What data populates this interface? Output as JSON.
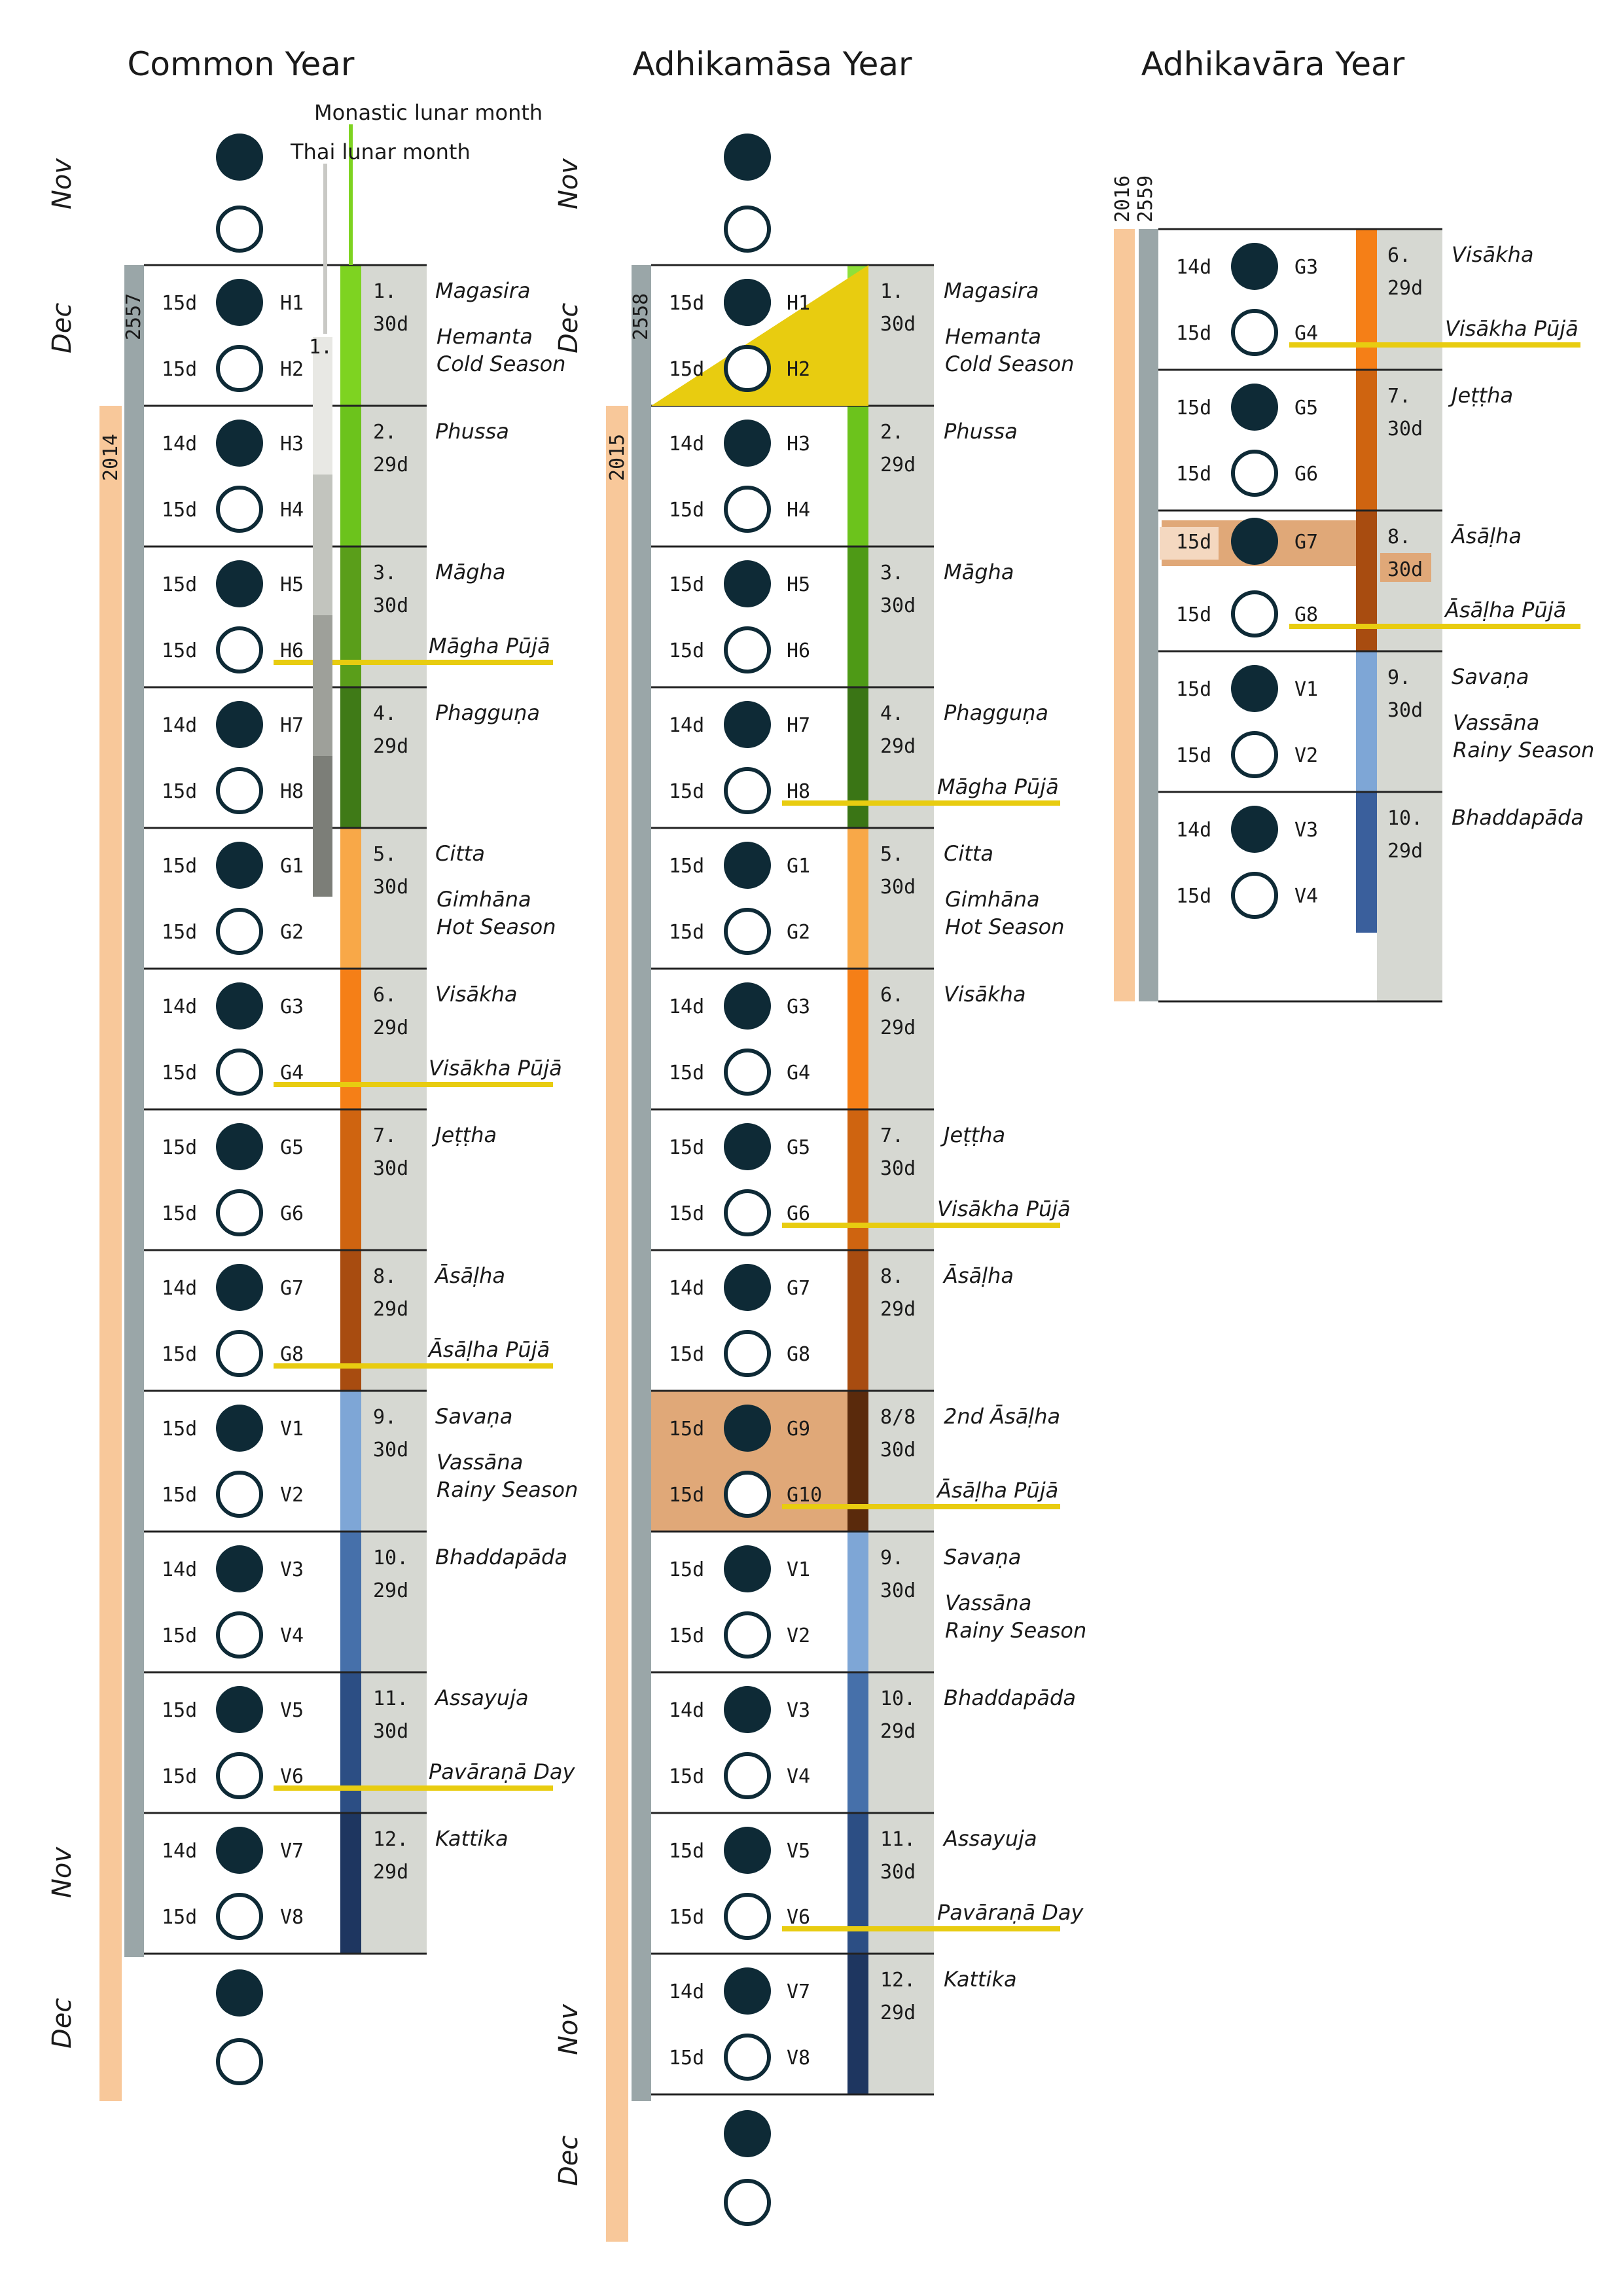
{
  "colors": {
    "ink": "#0e2a36",
    "grey_bar": "#9aa6a8",
    "orange_bar": "#f8c89a",
    "col_bg": "#d6d8d2",
    "highlight": "#e0a878",
    "puja": "#e8cc10",
    "monastic_legend": "#7ed321",
    "thai_legend": "#c9c9c5"
  },
  "legend": {
    "monastic": "Monastic lunar month",
    "thai": "Thai lunar month",
    "thai_marker": "1."
  },
  "columns": [
    {
      "id": "common",
      "title": "Common Year",
      "side_labels": [
        "Nov",
        "Dec",
        "Nov",
        "Dec"
      ],
      "grey_bar_label": "2557",
      "orange_bar_label": "2014",
      "pre_moons": [
        "new",
        "full"
      ],
      "post_moons": [
        "new",
        "full"
      ],
      "months": [
        {
          "num": "1.",
          "days": "30d",
          "name": "Magasira",
          "season": [
            "Hemanta",
            "Cold Season"
          ],
          "color": "#7ed321",
          "halves": [
            [
              "15d",
              "H1"
            ],
            [
              "15d",
              "H2"
            ]
          ]
        },
        {
          "num": "2.",
          "days": "29d",
          "name": "Phussa",
          "color": "#6cc31c",
          "halves": [
            [
              "14d",
              "H3"
            ],
            [
              "15d",
              "H4"
            ]
          ]
        },
        {
          "num": "3.",
          "days": "30d",
          "name": "Māgha",
          "color": "#5a9e1a",
          "puja": "Māgha Pūjā",
          "halves": [
            [
              "15d",
              "H5"
            ],
            [
              "15d",
              "H6"
            ]
          ]
        },
        {
          "num": "4.",
          "days": "29d",
          "name": "Phagguṇa",
          "color": "#3f7a17",
          "halves": [
            [
              "14d",
              "H7"
            ],
            [
              "15d",
              "H8"
            ]
          ]
        },
        {
          "num": "5.",
          "days": "30d",
          "name": "Citta",
          "season": [
            "Gimhāna",
            "Hot Season"
          ],
          "color": "#f8a848",
          "halves": [
            [
              "15d",
              "G1"
            ],
            [
              "15d",
              "G2"
            ]
          ]
        },
        {
          "num": "6.",
          "days": "29d",
          "name": "Visākha",
          "color": "#f57f17",
          "puja": "Visākha Pūjā",
          "halves": [
            [
              "14d",
              "G3"
            ],
            [
              "15d",
              "G4"
            ]
          ]
        },
        {
          "num": "7.",
          "days": "30d",
          "name": "Jeṭṭha",
          "color": "#cf6410",
          "halves": [
            [
              "15d",
              "G5"
            ],
            [
              "15d",
              "G6"
            ]
          ]
        },
        {
          "num": "8.",
          "days": "29d",
          "name": "Āsāḷha",
          "color": "#a84c10",
          "puja": "Āsāḷha Pūjā",
          "halves": [
            [
              "14d",
              "G7"
            ],
            [
              "15d",
              "G8"
            ]
          ]
        },
        {
          "num": "9.",
          "days": "30d",
          "name": "Savaṇa",
          "season": [
            "Vassāna",
            "Rainy Season"
          ],
          "color": "#7ea6d6",
          "halves": [
            [
              "15d",
              "V1"
            ],
            [
              "15d",
              "V2"
            ]
          ]
        },
        {
          "num": "10.",
          "days": "29d",
          "name": "Bhaddapāda",
          "color": "#4670aa",
          "halves": [
            [
              "14d",
              "V3"
            ],
            [
              "15d",
              "V4"
            ]
          ]
        },
        {
          "num": "11.",
          "days": "30d",
          "name": "Assayuja",
          "color": "#2c4e84",
          "puja": "Pavāraṇā Day",
          "halves": [
            [
              "15d",
              "V5"
            ],
            [
              "15d",
              "V6"
            ]
          ]
        },
        {
          "num": "12.",
          "days": "29d",
          "name": "Kattika",
          "color": "#1e3660",
          "halves": [
            [
              "14d",
              "V7"
            ],
            [
              "15d",
              "V8"
            ]
          ]
        }
      ]
    },
    {
      "id": "adhikamasa",
      "title": "Adhikamāsa Year",
      "side_labels": [
        "Nov",
        "Dec",
        "Nov",
        "Dec"
      ],
      "grey_bar_label": "2558",
      "orange_bar_label": "2015",
      "pre_moons": [
        "new",
        "full"
      ],
      "post_moons": [
        "new",
        "full"
      ],
      "months": [
        {
          "num": "1.",
          "days": "30d",
          "name": "Magasira",
          "season": [
            "Hemanta",
            "Cold Season"
          ],
          "color": "#8ee03a",
          "halves": [
            [
              "15d",
              "H1"
            ],
            [
              "15d",
              "H2"
            ]
          ]
        },
        {
          "num": "2.",
          "days": "29d",
          "name": "Phussa",
          "color": "#6cc31c",
          "halves": [
            [
              "14d",
              "H3"
            ],
            [
              "15d",
              "H4"
            ]
          ]
        },
        {
          "num": "3.",
          "days": "30d",
          "name": "Māgha",
          "color": "#4e9a16",
          "halves": [
            [
              "15d",
              "H5"
            ],
            [
              "15d",
              "H6"
            ]
          ]
        },
        {
          "num": "4.",
          "days": "29d",
          "name": "Phagguṇa",
          "color": "#3a7515",
          "puja": "Māgha Pūjā",
          "halves": [
            [
              "14d",
              "H7"
            ],
            [
              "15d",
              "H8"
            ]
          ]
        },
        {
          "num": "5.",
          "days": "30d",
          "name": "Citta",
          "season": [
            "Gimhāna",
            "Hot Season"
          ],
          "color": "#f8a848",
          "halves": [
            [
              "15d",
              "G1"
            ],
            [
              "15d",
              "G2"
            ]
          ]
        },
        {
          "num": "6.",
          "days": "29d",
          "name": "Visākha",
          "color": "#f57f17",
          "halves": [
            [
              "14d",
              "G3"
            ],
            [
              "15d",
              "G4"
            ]
          ]
        },
        {
          "num": "7.",
          "days": "30d",
          "name": "Jeṭṭha",
          "color": "#cf6410",
          "puja": "Visākha Pūjā",
          "halves": [
            [
              "15d",
              "G5"
            ],
            [
              "15d",
              "G6"
            ]
          ]
        },
        {
          "num": "8.",
          "days": "29d",
          "name": "Āsāḷha",
          "color": "#a84c10",
          "halves": [
            [
              "14d",
              "G7"
            ],
            [
              "15d",
              "G8"
            ]
          ]
        },
        {
          "num": "8/8",
          "days": "30d",
          "name": "2nd Āsāḷha",
          "color": "#5a2a0c",
          "puja": "Āsāḷha Pūjā",
          "highlight": true,
          "halves": [
            [
              "15d",
              "G9"
            ],
            [
              "15d",
              "G10"
            ]
          ]
        },
        {
          "num": "9.",
          "days": "30d",
          "name": "Savaṇa",
          "season": [
            "Vassāna",
            "Rainy Season"
          ],
          "color": "#7ea6d6",
          "halves": [
            [
              "15d",
              "V1"
            ],
            [
              "15d",
              "V2"
            ]
          ]
        },
        {
          "num": "10.",
          "days": "29d",
          "name": "Bhaddapāda",
          "color": "#4670aa",
          "halves": [
            [
              "14d",
              "V3"
            ],
            [
              "15d",
              "V4"
            ]
          ]
        },
        {
          "num": "11.",
          "days": "30d",
          "name": "Assayuja",
          "color": "#2c4e84",
          "puja": "Pavāraṇā Day",
          "halves": [
            [
              "15d",
              "V5"
            ],
            [
              "15d",
              "V6"
            ]
          ]
        },
        {
          "num": "12.",
          "days": "29d",
          "name": "Kattika",
          "color": "#1e3660",
          "halves": [
            [
              "14d",
              "V7"
            ],
            [
              "15d",
              "V8"
            ]
          ]
        }
      ]
    },
    {
      "id": "adhikavara",
      "title": "Adhikavāra Year",
      "year_labels": [
        "2016",
        "2559"
      ],
      "months": [
        {
          "num": "6.",
          "days": "29d",
          "name": "Visākha",
          "color": "#f57f17",
          "puja": "Visākha Pūjā",
          "halves": [
            [
              "14d",
              "G3"
            ],
            [
              "15d",
              "G4"
            ]
          ]
        },
        {
          "num": "7.",
          "days": "30d",
          "name": "Jeṭṭha",
          "color": "#cf6410",
          "halves": [
            [
              "15d",
              "G5"
            ],
            [
              "15d",
              "G6"
            ]
          ]
        },
        {
          "num": "8.",
          "days": "30d",
          "name": "Āsāḷha",
          "color": "#a84c10",
          "puja": "Āsāḷha Pūjā",
          "extra_day": true,
          "halves": [
            [
              "15d",
              "G7"
            ],
            [
              "15d",
              "G8"
            ]
          ]
        },
        {
          "num": "9.",
          "days": "30d",
          "name": "Savaṇa",
          "season": [
            "Vassāna",
            "Rainy Season"
          ],
          "color": "#7ea6d6",
          "halves": [
            [
              "15d",
              "V1"
            ],
            [
              "15d",
              "V2"
            ]
          ]
        },
        {
          "num": "10.",
          "days": "29d",
          "name": "Bhaddapāda",
          "color": "#3a5f9c",
          "halves": [
            [
              "14d",
              "V3"
            ],
            [
              "15d",
              "V4"
            ]
          ]
        }
      ]
    }
  ]
}
